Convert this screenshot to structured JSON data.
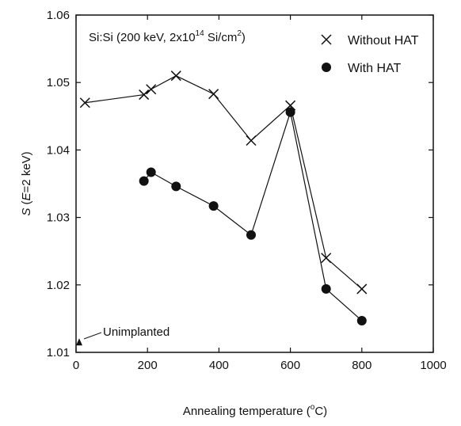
{
  "chart_data": {
    "type": "line",
    "annotation_main": "Si:Si (200 keV, 2x10",
    "annotation_sup1": "14",
    "annotation_tail": " Si/cm",
    "annotation_sup2": "2",
    "annotation_close": ")",
    "xlabel_main": "Annealing temperature (",
    "xlabel_sup": "o",
    "xlabel_tail": "C)",
    "ylabel_italic_s": "S",
    "ylabel_paren_open": " (",
    "ylabel_italic_e": "E",
    "ylabel_tail": "=2 keV)",
    "xlim": [
      0,
      1000
    ],
    "ylim": [
      1.01,
      1.06
    ],
    "xticks": [
      0,
      200,
      400,
      600,
      800,
      1000
    ],
    "yticks": [
      1.01,
      1.02,
      1.03,
      1.04,
      1.05,
      1.06
    ],
    "xtick_labels": [
      "0",
      "200",
      "400",
      "600",
      "800",
      "1000"
    ],
    "ytick_labels": [
      "1.01",
      "1.02",
      "1.03",
      "1.04",
      "1.05",
      "1.06"
    ],
    "grid": false,
    "legend_position": "top-right",
    "series": [
      {
        "name": "Without HAT",
        "marker": "x",
        "color": "#111111",
        "x": [
          25,
          190,
          210,
          280,
          385,
          490,
          600,
          700,
          800
        ],
        "y": [
          1.047,
          1.0482,
          1.049,
          1.051,
          1.0483,
          1.0414,
          1.0466,
          1.024,
          1.0194
        ]
      },
      {
        "name": "With HAT",
        "marker": "circle",
        "color": "#111111",
        "x": [
          190,
          210,
          280,
          385,
          490,
          600,
          700,
          800
        ],
        "y": [
          1.0354,
          1.0367,
          1.0346,
          1.0317,
          1.0274,
          1.0456,
          1.0194,
          1.0147
        ]
      }
    ],
    "unimplanted": {
      "label": "Unimplanted",
      "x": 0,
      "y": 1.0115,
      "marker": "triangle"
    }
  }
}
